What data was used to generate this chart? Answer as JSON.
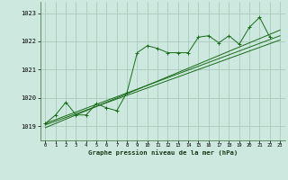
{
  "title": "Graphe pression niveau de la mer (hPa)",
  "bg_color": "#cce8df",
  "line_color": "#1a6b1a",
  "grid_color": "#b0d8c8",
  "xlim": [
    -0.5,
    23.5
  ],
  "ylim": [
    1018.5,
    1023.4
  ],
  "yticks": [
    1019,
    1020,
    1021,
    1022,
    1023
  ],
  "xticks": [
    0,
    1,
    2,
    3,
    4,
    5,
    6,
    7,
    8,
    9,
    10,
    11,
    12,
    13,
    14,
    15,
    16,
    17,
    18,
    19,
    20,
    21,
    22,
    23
  ],
  "series_main": [
    [
      0,
      1019.1
    ],
    [
      1,
      1019.4
    ],
    [
      2,
      1019.85
    ],
    [
      3,
      1019.4
    ],
    [
      4,
      1019.4
    ],
    [
      5,
      1019.8
    ],
    [
      6,
      1019.65
    ],
    [
      7,
      1019.55
    ],
    [
      8,
      1020.2
    ],
    [
      9,
      1021.6
    ],
    [
      10,
      1021.85
    ],
    [
      11,
      1021.75
    ],
    [
      12,
      1021.6
    ],
    [
      13,
      1021.6
    ],
    [
      14,
      1021.6
    ],
    [
      15,
      1022.15
    ],
    [
      16,
      1022.2
    ],
    [
      17,
      1021.95
    ],
    [
      18,
      1022.2
    ],
    [
      19,
      1021.9
    ],
    [
      20,
      1022.5
    ],
    [
      21,
      1022.85
    ],
    [
      22,
      1022.15
    ]
  ],
  "trend_lines": [
    [
      [
        0,
        1019.05
      ],
      [
        23,
        1022.05
      ]
    ],
    [
      [
        0,
        1019.1
      ],
      [
        23,
        1022.2
      ]
    ],
    [
      [
        0,
        1018.95
      ],
      [
        23,
        1022.4
      ]
    ]
  ]
}
